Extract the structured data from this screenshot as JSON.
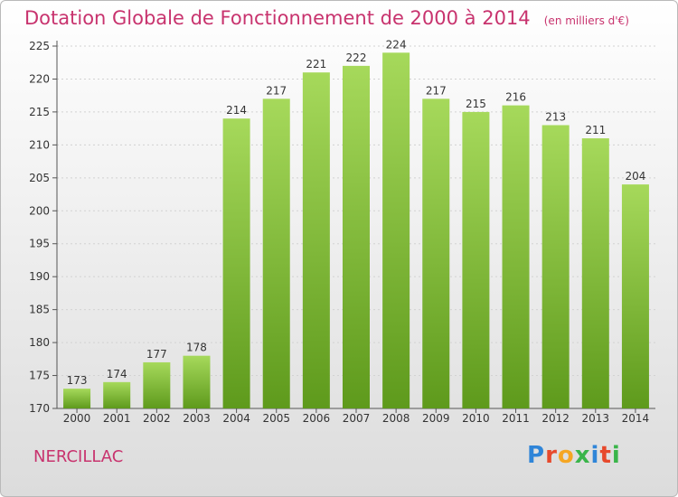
{
  "page": {
    "title": "Dotation Globale de Fonctionnement de 2000 à 2014",
    "subtitle": "(en milliers d'€)",
    "commune": "NERCILLAC",
    "logo": "Proxiti",
    "logo_colors": [
      "#2f85d8",
      "#e7492c",
      "#f5a623",
      "#3ab54a",
      "#2f85d8",
      "#e7492c",
      "#3ab54a"
    ]
  },
  "colors": {
    "title": "#c8336e",
    "bar_top": "#a6d95b",
    "bar_bottom": "#5e9a1c"
  },
  "chart_data": {
    "type": "bar",
    "title": "Dotation Globale de Fonctionnement de 2000 à 2014",
    "subtitle": "(en milliers d'€)",
    "categories": [
      "2000",
      "2001",
      "2002",
      "2003",
      "2004",
      "2005",
      "2006",
      "2007",
      "2008",
      "2009",
      "2010",
      "2011",
      "2012",
      "2013",
      "2014"
    ],
    "values": [
      173,
      174,
      177,
      178,
      214,
      217,
      221,
      222,
      224,
      217,
      215,
      216,
      213,
      211,
      204
    ],
    "ylim": [
      170,
      225
    ],
    "yticks": [
      170,
      175,
      180,
      185,
      190,
      195,
      200,
      205,
      210,
      215,
      220,
      225
    ],
    "grid": true,
    "legend": "none"
  }
}
